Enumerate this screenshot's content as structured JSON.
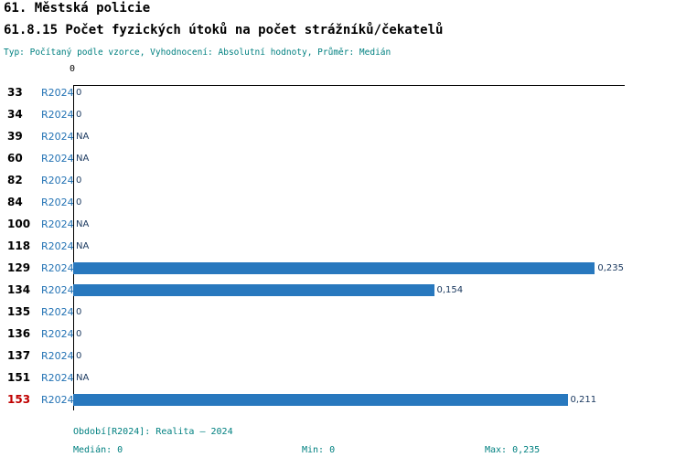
{
  "header": {
    "title": "61. Městská policie",
    "subtitle": "61.8.15 Počet fyzických útoků na počet strážníků/čekatelů",
    "meta": "Typ: Počítaný podle vzorce, Vyhodnocení: Absolutní hodnoty, Průměr: Medián"
  },
  "chart_data": {
    "type": "bar",
    "orientation": "horizontal",
    "title": "61.8.15 Počet fyzických útoků na počet strážníků/čekatelů",
    "series_label": "R2024",
    "axis": {
      "zero_label": "0",
      "xmin": 0,
      "xmax": 0.235
    },
    "categories": [
      "33",
      "34",
      "39",
      "60",
      "82",
      "84",
      "100",
      "118",
      "129",
      "134",
      "135",
      "136",
      "137",
      "151",
      "153"
    ],
    "rows": [
      {
        "id": "33",
        "period": "R2024",
        "value": 0,
        "display": "0",
        "highlight": false
      },
      {
        "id": "34",
        "period": "R2024",
        "value": 0,
        "display": "0",
        "highlight": false
      },
      {
        "id": "39",
        "period": "R2024",
        "value": null,
        "display": "NA",
        "highlight": false
      },
      {
        "id": "60",
        "period": "R2024",
        "value": null,
        "display": "NA",
        "highlight": false
      },
      {
        "id": "82",
        "period": "R2024",
        "value": 0,
        "display": "0",
        "highlight": false
      },
      {
        "id": "84",
        "period": "R2024",
        "value": 0,
        "display": "0",
        "highlight": false
      },
      {
        "id": "100",
        "period": "R2024",
        "value": null,
        "display": "NA",
        "highlight": false
      },
      {
        "id": "118",
        "period": "R2024",
        "value": null,
        "display": "NA",
        "highlight": false
      },
      {
        "id": "129",
        "period": "R2024",
        "value": 0.235,
        "display": "0,235",
        "highlight": false
      },
      {
        "id": "134",
        "period": "R2024",
        "value": 0.154,
        "display": "0,154",
        "highlight": false
      },
      {
        "id": "135",
        "period": "R2024",
        "value": 0,
        "display": "0",
        "highlight": false
      },
      {
        "id": "136",
        "period": "R2024",
        "value": 0,
        "display": "0",
        "highlight": false
      },
      {
        "id": "137",
        "period": "R2024",
        "value": 0,
        "display": "0",
        "highlight": false
      },
      {
        "id": "151",
        "period": "R2024",
        "value": null,
        "display": "NA",
        "highlight": false
      },
      {
        "id": "153",
        "period": "R2024",
        "value": 0.211,
        "display": "0,211",
        "highlight": true
      }
    ]
  },
  "footer": {
    "period_info": "Období[R2024]: Realita – 2024",
    "median": "Medián: 0",
    "min": "Min: 0",
    "max": "Max: 0,235"
  },
  "colors": {
    "bar": "#2878BE",
    "teal_text": "#008080",
    "period_blue": "#2272B4",
    "value_navy": "#17365D",
    "highlight_red": "#C00000"
  }
}
